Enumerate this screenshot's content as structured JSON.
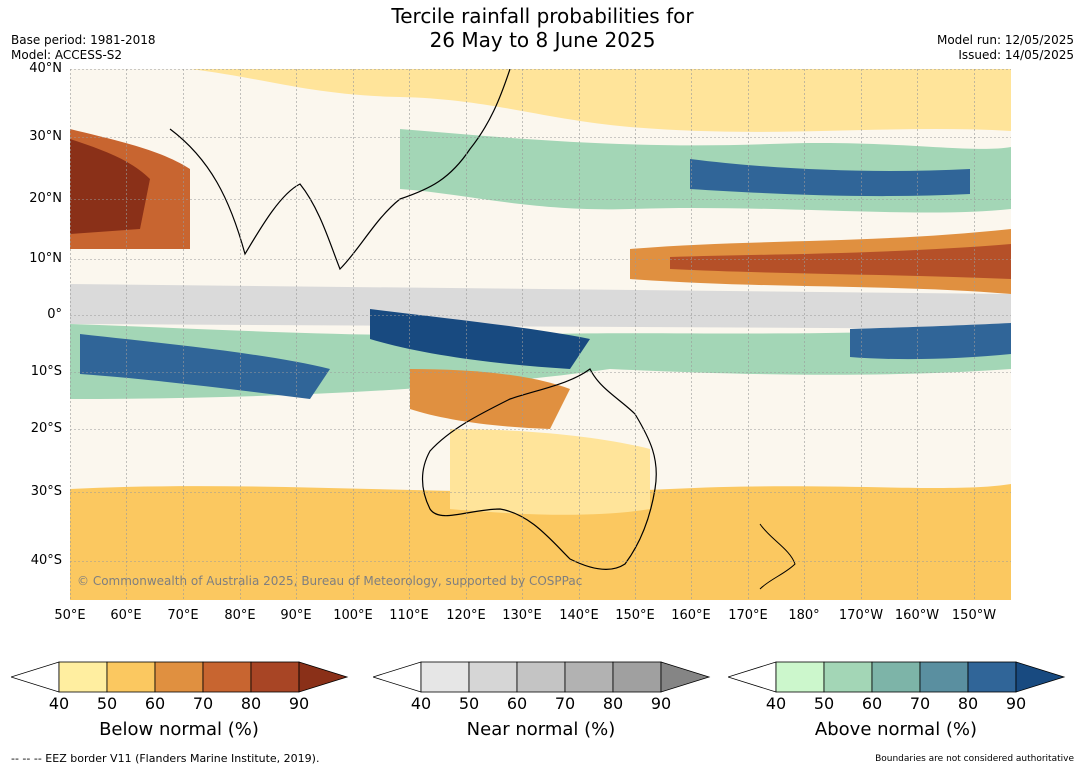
{
  "header": {
    "title_line1": "Tercile rainfall probabilities for",
    "title_line2": "26 May to 8 June 2025",
    "base_period": "Base period: 1981-2018",
    "model": "Model: ACCESS-S2",
    "model_run": "Model run: 12/05/2025",
    "issued": "Issued: 14/05/2025"
  },
  "map": {
    "lat_labels": [
      "40°N",
      "30°N",
      "20°N",
      "10°N",
      "0°",
      "10°S",
      "20°S",
      "30°S",
      "40°S"
    ],
    "lon_labels": [
      "50°E",
      "60°E",
      "70°E",
      "80°E",
      "90°E",
      "100°E",
      "110°E",
      "120°E",
      "130°E",
      "140°E",
      "150°E",
      "160°E",
      "170°E",
      "180°",
      "170°W",
      "160°W",
      "150°W"
    ],
    "copyright": "© Commonwealth of Australia 2025, Bureau of Meteorology, supported by COSPPac"
  },
  "legends": [
    {
      "title": "Below normal (%)",
      "ticks": [
        "40",
        "50",
        "60",
        "70",
        "80",
        "90"
      ],
      "colors": [
        "#ffeea0",
        "#fbc860",
        "#e09040",
        "#c86530",
        "#a84525",
        "#8a3018"
      ]
    },
    {
      "title": "Near normal (%)",
      "ticks": [
        "40",
        "50",
        "60",
        "70",
        "80",
        "90"
      ],
      "colors": [
        "#e6e6e6",
        "#d6d6d6",
        "#c4c4c4",
        "#b2b2b2",
        "#a0a0a0",
        "#858585"
      ]
    },
    {
      "title": "Above normal (%)",
      "ticks": [
        "40",
        "50",
        "60",
        "70",
        "80",
        "90"
      ],
      "colors": [
        "#ccf7cc",
        "#a3d6b6",
        "#7db4a8",
        "#5a8fa0",
        "#306598",
        "#184a80"
      ]
    }
  ],
  "footer": {
    "eez_note": "--  --  -- EEZ border V11 (Flanders Marine Institute, 2019).",
    "boundaries_note": "Boundaries are not considered authoritative"
  }
}
